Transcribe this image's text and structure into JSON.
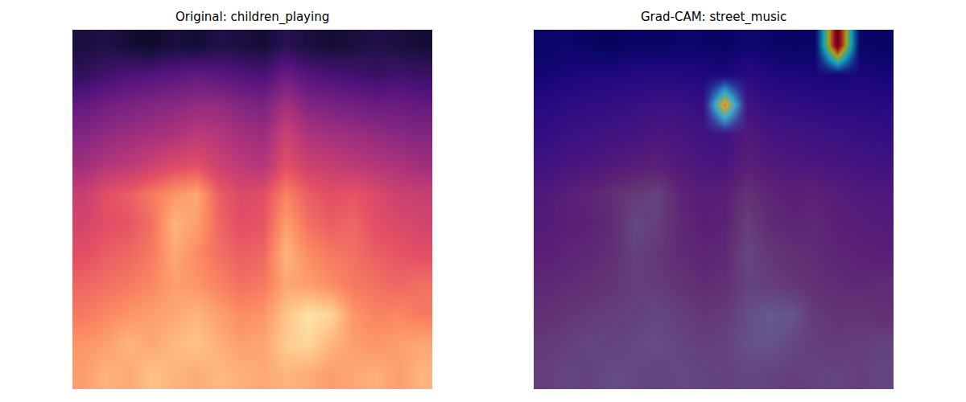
{
  "chart_data": [
    {
      "type": "heatmap",
      "title": "Original: children_playing",
      "tick_labels": false,
      "zlim": [
        0,
        1
      ],
      "z": [
        [
          0.8,
          0.85,
          0.82,
          0.88,
          0.85,
          0.83,
          0.86,
          0.84,
          0.82,
          0.85,
          0.83,
          0.8,
          0.82,
          0.84,
          0.8,
          0.85
        ],
        [
          0.78,
          0.8,
          0.85,
          0.82,
          0.86,
          0.88,
          0.84,
          0.8,
          0.82,
          0.9,
          0.92,
          0.85,
          0.8,
          0.78,
          0.8,
          0.82
        ],
        [
          0.72,
          0.75,
          0.78,
          0.8,
          0.82,
          0.85,
          0.8,
          0.76,
          0.78,
          0.88,
          0.95,
          0.92,
          0.78,
          0.74,
          0.75,
          0.72
        ],
        [
          0.68,
          0.7,
          0.72,
          0.75,
          0.8,
          0.78,
          0.74,
          0.7,
          0.72,
          0.82,
          0.8,
          0.76,
          0.72,
          0.7,
          0.68,
          0.7
        ],
        [
          0.62,
          0.66,
          0.68,
          0.72,
          0.82,
          0.76,
          0.7,
          0.66,
          0.68,
          0.85,
          0.76,
          0.72,
          0.7,
          0.66,
          0.64,
          0.62
        ],
        [
          0.58,
          0.62,
          0.64,
          0.7,
          0.85,
          0.8,
          0.68,
          0.62,
          0.64,
          0.8,
          0.7,
          0.66,
          0.68,
          0.62,
          0.6,
          0.58
        ],
        [
          0.55,
          0.62,
          0.66,
          0.72,
          0.78,
          0.82,
          0.66,
          0.6,
          0.62,
          0.74,
          0.66,
          0.62,
          0.64,
          0.6,
          0.56,
          0.55
        ],
        [
          0.45,
          0.5,
          0.52,
          0.56,
          0.6,
          0.62,
          0.56,
          0.52,
          0.5,
          0.62,
          0.56,
          0.54,
          0.52,
          0.5,
          0.48,
          0.45
        ],
        [
          0.38,
          0.42,
          0.44,
          0.46,
          0.48,
          0.52,
          0.5,
          0.46,
          0.44,
          0.56,
          0.48,
          0.46,
          0.44,
          0.42,
          0.4,
          0.38
        ],
        [
          0.3,
          0.34,
          0.36,
          0.38,
          0.4,
          0.42,
          0.42,
          0.38,
          0.36,
          0.46,
          0.38,
          0.36,
          0.34,
          0.32,
          0.32,
          0.3
        ],
        [
          0.18,
          0.22,
          0.25,
          0.26,
          0.28,
          0.3,
          0.28,
          0.26,
          0.24,
          0.32,
          0.26,
          0.24,
          0.22,
          0.2,
          0.22,
          0.2
        ],
        [
          0.12,
          0.14,
          0.1,
          0.08,
          0.12,
          0.1,
          0.14,
          0.12,
          0.1,
          0.16,
          0.12,
          0.1,
          0.12,
          0.14,
          0.12,
          0.1
        ]
      ]
    },
    {
      "type": "heatmap",
      "title": "Grad-CAM: street_music",
      "tick_labels": false,
      "zlim": [
        0,
        1
      ],
      "z": [
        [
          0.8,
          0.85,
          0.82,
          0.88,
          0.85,
          0.83,
          0.86,
          0.84,
          0.82,
          0.85,
          0.83,
          0.8,
          0.82,
          0.84,
          0.8,
          0.85
        ],
        [
          0.78,
          0.8,
          0.85,
          0.82,
          0.86,
          0.88,
          0.84,
          0.8,
          0.82,
          0.9,
          0.92,
          0.85,
          0.8,
          0.78,
          0.8,
          0.82
        ],
        [
          0.72,
          0.75,
          0.78,
          0.8,
          0.82,
          0.85,
          0.8,
          0.76,
          0.78,
          0.88,
          0.95,
          0.92,
          0.78,
          0.74,
          0.75,
          0.72
        ],
        [
          0.68,
          0.7,
          0.72,
          0.75,
          0.8,
          0.78,
          0.74,
          0.7,
          0.72,
          0.82,
          0.8,
          0.76,
          0.72,
          0.7,
          0.68,
          0.7
        ],
        [
          0.62,
          0.66,
          0.68,
          0.72,
          0.82,
          0.76,
          0.7,
          0.66,
          0.68,
          0.85,
          0.76,
          0.72,
          0.7,
          0.66,
          0.64,
          0.62
        ],
        [
          0.58,
          0.62,
          0.64,
          0.7,
          0.85,
          0.8,
          0.68,
          0.62,
          0.64,
          0.8,
          0.7,
          0.66,
          0.68,
          0.62,
          0.6,
          0.58
        ],
        [
          0.55,
          0.62,
          0.66,
          0.72,
          0.78,
          0.82,
          0.66,
          0.6,
          0.62,
          0.74,
          0.66,
          0.62,
          0.64,
          0.6,
          0.56,
          0.55
        ],
        [
          0.45,
          0.5,
          0.52,
          0.56,
          0.6,
          0.62,
          0.56,
          0.52,
          0.5,
          0.62,
          0.56,
          0.54,
          0.52,
          0.5,
          0.48,
          0.45
        ],
        [
          0.38,
          0.42,
          0.44,
          0.46,
          0.48,
          0.52,
          0.5,
          0.46,
          0.44,
          0.56,
          0.48,
          0.46,
          0.44,
          0.42,
          0.4,
          0.38
        ],
        [
          0.3,
          0.34,
          0.36,
          0.38,
          0.4,
          0.42,
          0.42,
          0.38,
          0.36,
          0.46,
          0.38,
          0.36,
          0.34,
          0.32,
          0.32,
          0.3
        ],
        [
          0.18,
          0.22,
          0.25,
          0.26,
          0.28,
          0.3,
          0.28,
          0.26,
          0.24,
          0.32,
          0.26,
          0.24,
          0.22,
          0.2,
          0.22,
          0.2
        ],
        [
          0.12,
          0.14,
          0.1,
          0.08,
          0.12,
          0.1,
          0.14,
          0.12,
          0.1,
          0.16,
          0.12,
          0.1,
          0.12,
          0.14,
          0.12,
          0.1
        ]
      ],
      "overlay_zlim": [
        0,
        1
      ],
      "overlay": [
        [
          0,
          0,
          0,
          0,
          0,
          0,
          0,
          0,
          0,
          0,
          0,
          0,
          0,
          0,
          0,
          0
        ],
        [
          0,
          0,
          0,
          0,
          0,
          0,
          0,
          0,
          0,
          0,
          0,
          0,
          0,
          0,
          0,
          0
        ],
        [
          0,
          0,
          0,
          0,
          0,
          0,
          0,
          0,
          0,
          0,
          0,
          0,
          0,
          0,
          0,
          0
        ],
        [
          0,
          0,
          0,
          0,
          0,
          0,
          0,
          0,
          0,
          0,
          0,
          0,
          0,
          0,
          0,
          0
        ],
        [
          0,
          0,
          0,
          0,
          0,
          0,
          0,
          0,
          0,
          0,
          0,
          0,
          0,
          0,
          0,
          0
        ],
        [
          0,
          0,
          0,
          0,
          0,
          0,
          0,
          0,
          0,
          0,
          0,
          0,
          0,
          0,
          0,
          0
        ],
        [
          0,
          0,
          0,
          0,
          0,
          0,
          0,
          0,
          0,
          0,
          0,
          0,
          0,
          0,
          0,
          0
        ],
        [
          0,
          0,
          0,
          0,
          0,
          0,
          0,
          0,
          0,
          0,
          0,
          0,
          0,
          0,
          0,
          0
        ],
        [
          0,
          0,
          0,
          0,
          0,
          0,
          0,
          0,
          0,
          0,
          0,
          0,
          0,
          0,
          0,
          0
        ],
        [
          0,
          0,
          0,
          0,
          0,
          0,
          0,
          0,
          0.7,
          0,
          0,
          0,
          0,
          0,
          0,
          0
        ],
        [
          0,
          0,
          0,
          0,
          0,
          0,
          0,
          0,
          0,
          0,
          0,
          0,
          0,
          0,
          0,
          0
        ],
        [
          0,
          0,
          0,
          0,
          0,
          0,
          0,
          0,
          0,
          0,
          0,
          0,
          0,
          1.0,
          0,
          0
        ]
      ]
    }
  ]
}
